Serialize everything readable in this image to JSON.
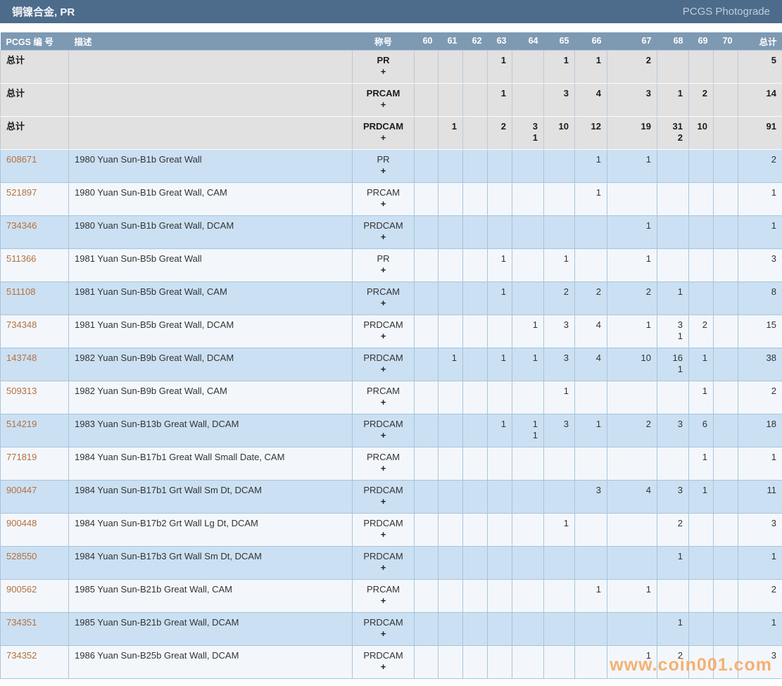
{
  "header": {
    "title": "铜镍合金, PR",
    "photograde_label": "PCGS Photograde"
  },
  "table": {
    "columns": [
      "PCGS 编 号",
      "描述",
      "称号",
      "60",
      "61",
      "62",
      "63",
      "64",
      "65",
      "66",
      "67",
      "68",
      "69",
      "70",
      "总计"
    ],
    "grade_keys": [
      "60",
      "61",
      "62",
      "63",
      "64",
      "65",
      "66",
      "67",
      "68",
      "69",
      "70"
    ],
    "plus_symbol": "+",
    "total_rows": [
      {
        "label": "总计",
        "designation": "PR",
        "grades": {
          "63": "1",
          "65": "1",
          "66": "1",
          "67": "2"
        },
        "plus": {},
        "total": "5"
      },
      {
        "label": "总计",
        "designation": "PRCAM",
        "grades": {
          "63": "1",
          "65": "3",
          "66": "4",
          "67": "3",
          "68": "1",
          "69": "2"
        },
        "plus": {},
        "total": "14"
      },
      {
        "label": "总计",
        "designation": "PRDCAM",
        "grades": {
          "61": "1",
          "63": "2",
          "64": "3",
          "65": "10",
          "66": "12",
          "67": "19",
          "68": "31",
          "69": "10"
        },
        "plus": {
          "64": "1",
          "68": "2"
        },
        "total": "91"
      }
    ],
    "rows": [
      {
        "num": "608671",
        "desc": "1980 Yuan Sun-B1b Great Wall",
        "designation": "PR",
        "grades": {
          "66": "1",
          "67": "1"
        },
        "plus": {},
        "total": "2"
      },
      {
        "num": "521897",
        "desc": "1980 Yuan Sun-B1b Great Wall, CAM",
        "designation": "PRCAM",
        "grades": {
          "66": "1"
        },
        "plus": {},
        "total": "1"
      },
      {
        "num": "734346",
        "desc": "1980 Yuan Sun-B1b Great Wall, DCAM",
        "designation": "PRDCAM",
        "grades": {
          "67": "1"
        },
        "plus": {},
        "total": "1"
      },
      {
        "num": "511366",
        "desc": "1981 Yuan Sun-B5b Great Wall",
        "designation": "PR",
        "grades": {
          "63": "1",
          "65": "1",
          "67": "1"
        },
        "plus": {},
        "total": "3"
      },
      {
        "num": "511108",
        "desc": "1981 Yuan Sun-B5b Great Wall, CAM",
        "designation": "PRCAM",
        "grades": {
          "63": "1",
          "65": "2",
          "66": "2",
          "67": "2",
          "68": "1"
        },
        "plus": {},
        "total": "8"
      },
      {
        "num": "734348",
        "desc": "1981 Yuan Sun-B5b Great Wall, DCAM",
        "designation": "PRDCAM",
        "grades": {
          "64": "1",
          "65": "3",
          "66": "4",
          "67": "1",
          "68": "3",
          "69": "2"
        },
        "plus": {
          "68": "1"
        },
        "total": "15"
      },
      {
        "num": "143748",
        "desc": "1982 Yuan Sun-B9b Great Wall, DCAM",
        "designation": "PRDCAM",
        "grades": {
          "61": "1",
          "63": "1",
          "64": "1",
          "65": "3",
          "66": "4",
          "67": "10",
          "68": "16",
          "69": "1"
        },
        "plus": {
          "68": "1"
        },
        "total": "38"
      },
      {
        "num": "509313",
        "desc": "1982 Yuan Sun-B9b Great Wall, CAM",
        "designation": "PRCAM",
        "grades": {
          "65": "1",
          "69": "1"
        },
        "plus": {},
        "total": "2"
      },
      {
        "num": "514219",
        "desc": "1983 Yuan Sun-B13b Great Wall, DCAM",
        "designation": "PRDCAM",
        "grades": {
          "63": "1",
          "64": "1",
          "65": "3",
          "66": "1",
          "67": "2",
          "68": "3",
          "69": "6"
        },
        "plus": {
          "64": "1"
        },
        "total": "18"
      },
      {
        "num": "771819",
        "desc": "1984 Yuan Sun-B17b1 Great Wall Small Date, CAM",
        "designation": "PRCAM",
        "grades": {
          "69": "1"
        },
        "plus": {},
        "total": "1"
      },
      {
        "num": "900447",
        "desc": "1984 Yuan Sun-B17b1 Grt Wall Sm Dt, DCAM",
        "designation": "PRDCAM",
        "grades": {
          "66": "3",
          "67": "4",
          "68": "3",
          "69": "1"
        },
        "plus": {},
        "total": "11"
      },
      {
        "num": "900448",
        "desc": "1984 Yuan Sun-B17b2 Grt Wall Lg Dt, DCAM",
        "designation": "PRDCAM",
        "grades": {
          "65": "1",
          "68": "2"
        },
        "plus": {},
        "total": "3"
      },
      {
        "num": "528550",
        "desc": "1984 Yuan Sun-B17b3 Grt Wall Sm Dt, DCAM",
        "designation": "PRDCAM",
        "grades": {
          "68": "1"
        },
        "plus": {},
        "total": "1"
      },
      {
        "num": "900562",
        "desc": "1985 Yuan Sun-B21b Great Wall, CAM",
        "designation": "PRCAM",
        "grades": {
          "66": "1",
          "67": "1"
        },
        "plus": {},
        "total": "2"
      },
      {
        "num": "734351",
        "desc": "1985 Yuan Sun-B21b Great Wall, DCAM",
        "designation": "PRDCAM",
        "grades": {
          "68": "1"
        },
        "plus": {},
        "total": "1"
      },
      {
        "num": "734352",
        "desc": "1986 Yuan Sun-B25b Great Wall, DCAM",
        "designation": "PRDCAM",
        "grades": {
          "67": "1",
          "68": "2"
        },
        "plus": {},
        "total": "3"
      }
    ]
  },
  "watermark": "www.coin001.com",
  "colors": {
    "header_bar": "#4d6b8a",
    "column_header_bar": "#7e9ab3",
    "row_blue": "#cbe0f3",
    "row_pale": "#f3f7fb",
    "row_total": "#e1e1e1",
    "pcgs_link": "#b5703f",
    "watermark": "#f7a963"
  }
}
